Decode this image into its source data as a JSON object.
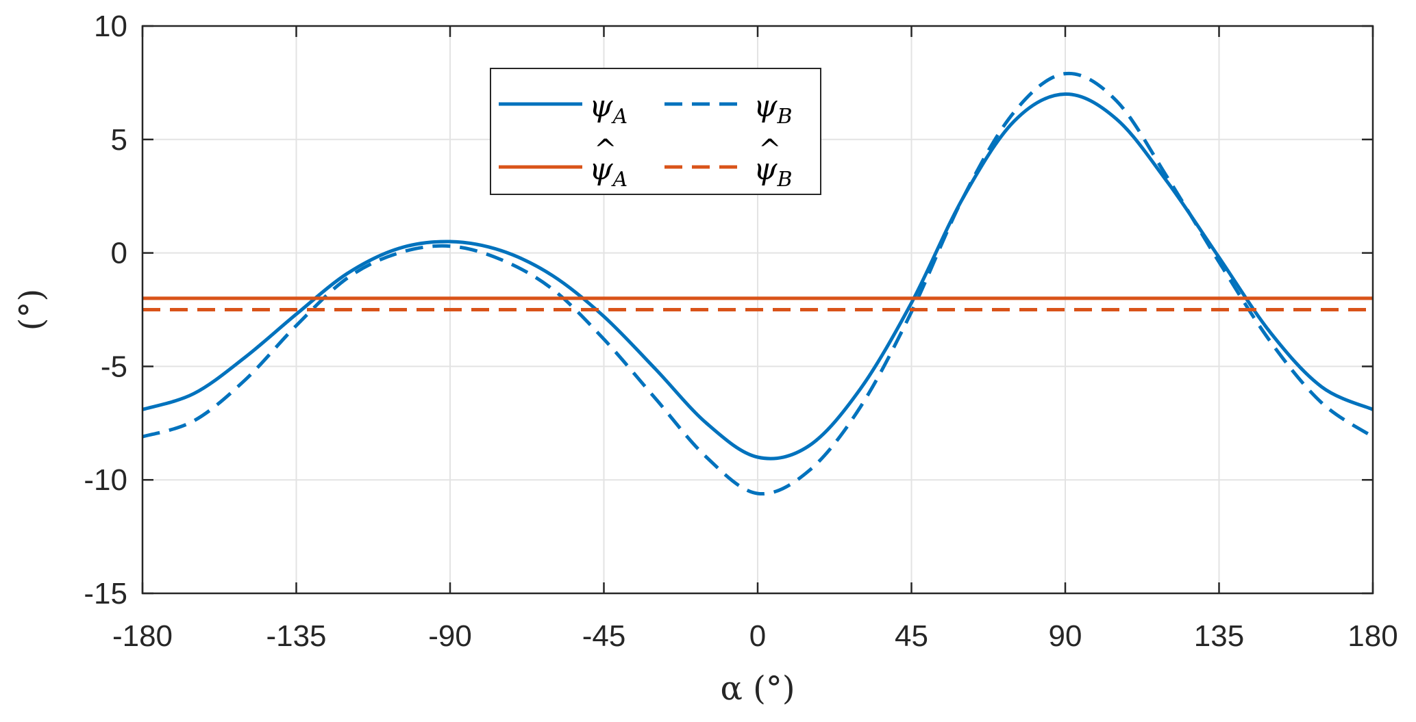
{
  "chart_data": {
    "type": "line",
    "xlabel": "α (°)",
    "ylabel": "(°)",
    "xlim": [
      -180,
      180
    ],
    "ylim": [
      -15,
      10
    ],
    "xticks": [
      -180,
      -135,
      -90,
      -45,
      0,
      45,
      90,
      135,
      180
    ],
    "yticks": [
      -15,
      -10,
      -5,
      0,
      5,
      10
    ],
    "grid": true,
    "legend_position": "top-center",
    "series": [
      {
        "name": "ψA",
        "color": "#0072BD",
        "style": "solid",
        "x": [
          -180,
          -165,
          -150,
          -135,
          -120,
          -105,
          -90,
          -75,
          -60,
          -45,
          -30,
          -15,
          0,
          15,
          30,
          45,
          60,
          75,
          90,
          105,
          120,
          135,
          150,
          165,
          180
        ],
        "y": [
          -6.9,
          -6.2,
          -4.6,
          -2.7,
          -0.9,
          0.2,
          0.5,
          0.1,
          -1.0,
          -2.8,
          -5.1,
          -7.5,
          -9.0,
          -8.5,
          -6.0,
          -2.2,
          2.4,
          5.8,
          7.0,
          5.9,
          3.1,
          -0.2,
          -3.5,
          -5.9,
          -6.9
        ]
      },
      {
        "name": "ψB",
        "color": "#0072BD",
        "style": "dashed",
        "x": [
          -180,
          -165,
          -150,
          -135,
          -120,
          -105,
          -90,
          -75,
          -60,
          -45,
          -30,
          -15,
          0,
          15,
          30,
          45,
          60,
          75,
          90,
          105,
          120,
          135,
          150,
          165,
          180
        ],
        "y": [
          -8.1,
          -7.4,
          -5.6,
          -3.2,
          -1.1,
          0.0,
          0.3,
          -0.3,
          -1.6,
          -3.8,
          -6.4,
          -9.0,
          -10.6,
          -9.6,
          -6.8,
          -2.6,
          2.4,
          6.2,
          7.9,
          6.7,
          3.3,
          -0.4,
          -3.9,
          -6.6,
          -8.1
        ]
      },
      {
        "name": "ψ̂A",
        "color": "#D95319",
        "style": "solid",
        "x": [
          -180,
          180
        ],
        "y": [
          -2.0,
          -2.0
        ]
      },
      {
        "name": "ψ̂B",
        "color": "#D95319",
        "style": "dashed",
        "x": [
          -180,
          180
        ],
        "y": [
          -2.5,
          -2.5
        ]
      }
    ]
  },
  "legend": {
    "entries": [
      {
        "symbol": "ψ",
        "subscript": "A",
        "hat": false,
        "color": "#0072BD",
        "style": "solid"
      },
      {
        "symbol": "ψ",
        "subscript": "B",
        "hat": false,
        "color": "#0072BD",
        "style": "dashed"
      },
      {
        "symbol": "ψ",
        "subscript": "A",
        "hat": true,
        "color": "#D95319",
        "style": "solid"
      },
      {
        "symbol": "ψ",
        "subscript": "B",
        "hat": true,
        "color": "#D95319",
        "style": "dashed"
      }
    ]
  }
}
